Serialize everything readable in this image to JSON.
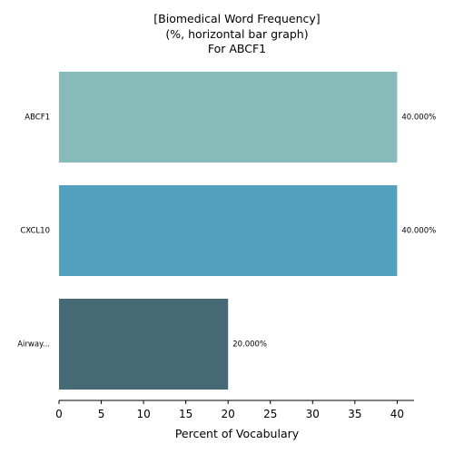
{
  "chart_data": {
    "type": "bar",
    "orientation": "horizontal",
    "title_lines": [
      "[Biomedical Word Frequency]",
      "(%, horizontal bar graph)",
      "For ABCF1"
    ],
    "xlabel": "Percent of Vocabulary",
    "ylabel": "",
    "categories": [
      "ABCF1",
      "CXCL10",
      "Airway..."
    ],
    "values": [
      40.0,
      40.0,
      20.0
    ],
    "data_labels": [
      "40.000%",
      "40.000%",
      "20.000%"
    ],
    "colors": [
      "#86bbb9",
      "#539fbe",
      "#456a76"
    ],
    "xlim": [
      0,
      42
    ],
    "xticks": [
      0,
      5,
      10,
      15,
      20,
      25,
      30,
      35,
      40
    ],
    "grid": false,
    "legend": "none"
  }
}
